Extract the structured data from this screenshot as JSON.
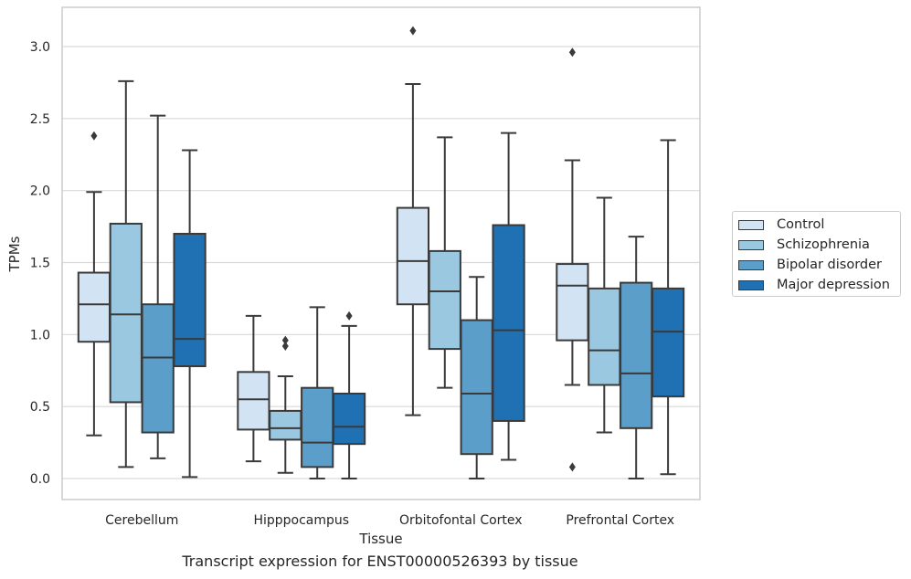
{
  "caption": "Transcript expression for ENST00000526393 by tissue",
  "chart_data": {
    "type": "box",
    "xlabel": "Tissue",
    "ylabel": "TPMs",
    "ylim": [
      -0.15,
      3.28
    ],
    "yticks": [
      "0.0",
      "0.5",
      "1.0",
      "1.5",
      "2.0",
      "2.5",
      "3.0"
    ],
    "grid": "horizontal",
    "legend_placement": "right",
    "categories": [
      "Cerebellum",
      "Hipppocampus",
      "Orbitofontal Cortex",
      "Prefrontal Cortex"
    ],
    "series": [
      {
        "name": "Control",
        "color": "#d2e3f3",
        "boxes": [
          {
            "whislo": 0.3,
            "q1": 0.95,
            "med": 1.21,
            "q3": 1.43,
            "whishi": 1.99,
            "fliers": [
              2.38
            ]
          },
          {
            "whislo": 0.12,
            "q1": 0.34,
            "med": 0.55,
            "q3": 0.74,
            "whishi": 1.13,
            "fliers": []
          },
          {
            "whislo": 0.44,
            "q1": 1.21,
            "med": 1.51,
            "q3": 1.88,
            "whishi": 2.74,
            "fliers": [
              3.11
            ]
          },
          {
            "whislo": 0.65,
            "q1": 0.96,
            "med": 1.34,
            "q3": 1.49,
            "whishi": 2.21,
            "fliers": [
              2.96,
              0.08
            ]
          }
        ]
      },
      {
        "name": "Schizophrenia",
        "color": "#9ac8e0",
        "boxes": [
          {
            "whislo": 0.08,
            "q1": 0.53,
            "med": 1.14,
            "q3": 1.77,
            "whishi": 2.76,
            "fliers": []
          },
          {
            "whislo": 0.04,
            "q1": 0.27,
            "med": 0.35,
            "q3": 0.47,
            "whishi": 0.71,
            "fliers": [
              0.96,
              0.92
            ]
          },
          {
            "whislo": 0.63,
            "q1": 0.9,
            "med": 1.3,
            "q3": 1.58,
            "whishi": 2.37,
            "fliers": []
          },
          {
            "whislo": 0.32,
            "q1": 0.65,
            "med": 0.89,
            "q3": 1.32,
            "whishi": 1.95,
            "fliers": []
          }
        ]
      },
      {
        "name": "Bipolar disorder",
        "color": "#5a9ec9",
        "boxes": [
          {
            "whislo": 0.14,
            "q1": 0.32,
            "med": 0.84,
            "q3": 1.21,
            "whishi": 2.52,
            "fliers": []
          },
          {
            "whislo": 0.0,
            "q1": 0.08,
            "med": 0.25,
            "q3": 0.63,
            "whishi": 1.19,
            "fliers": []
          },
          {
            "whislo": 0.0,
            "q1": 0.17,
            "med": 0.59,
            "q3": 1.1,
            "whishi": 1.4,
            "fliers": []
          },
          {
            "whislo": 0.0,
            "q1": 0.35,
            "med": 0.73,
            "q3": 1.36,
            "whishi": 1.68,
            "fliers": []
          }
        ]
      },
      {
        "name": "Major depression",
        "color": "#2070b4",
        "boxes": [
          {
            "whislo": 0.01,
            "q1": 0.78,
            "med": 0.97,
            "q3": 1.7,
            "whishi": 2.28,
            "fliers": []
          },
          {
            "whislo": 0.0,
            "q1": 0.24,
            "med": 0.36,
            "q3": 0.59,
            "whishi": 1.06,
            "fliers": [
              1.13
            ]
          },
          {
            "whislo": 0.13,
            "q1": 0.4,
            "med": 1.03,
            "q3": 1.76,
            "whishi": 2.4,
            "fliers": []
          },
          {
            "whislo": 0.03,
            "q1": 0.57,
            "med": 1.02,
            "q3": 1.32,
            "whishi": 2.35,
            "fliers": []
          }
        ]
      }
    ]
  }
}
